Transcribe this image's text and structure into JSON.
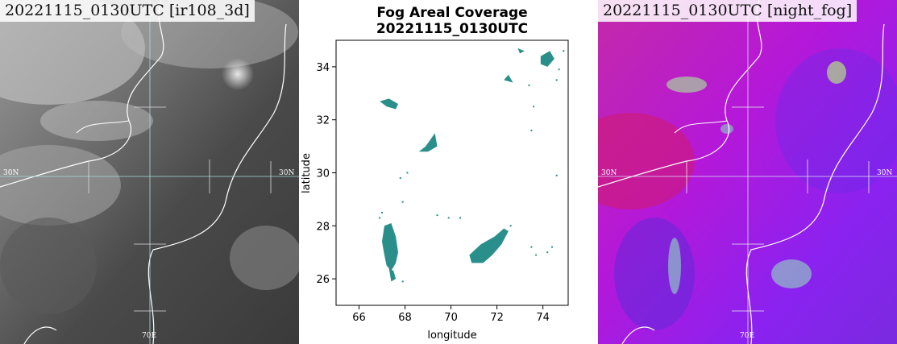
{
  "left_panel": {
    "title": "20221115_0130UTC [ir108_3d]",
    "lat_label_left": "30N",
    "lat_label_right": "30N",
    "lon_label": "70E"
  },
  "right_panel": {
    "title": "20221115_0130UTC [night_fog]",
    "lat_label_left": "30N",
    "lat_label_right": "30N",
    "lon_label": "70E"
  },
  "chart_data": {
    "type": "heatmap",
    "title": "Fog Areal Coverage",
    "subtitle": "20221115_0130UTC",
    "xlabel": "longitude",
    "ylabel": "latitude",
    "xlim": [
      65,
      75.1
    ],
    "ylim": [
      25,
      35
    ],
    "xticks": [
      66,
      68,
      70,
      72,
      74
    ],
    "yticks": [
      26,
      28,
      30,
      32,
      34
    ],
    "fog_color": "#2a8f8a",
    "fog_patches": [
      {
        "name": "patch-sw-large",
        "points": [
          [
            67.1,
            28.0
          ],
          [
            67.4,
            28.1
          ],
          [
            67.6,
            27.6
          ],
          [
            67.7,
            27.0
          ],
          [
            67.6,
            26.6
          ],
          [
            67.4,
            26.3
          ],
          [
            67.2,
            26.5
          ],
          [
            67.1,
            26.9
          ],
          [
            67.0,
            27.4
          ]
        ]
      },
      {
        "name": "patch-sw-tail",
        "points": [
          [
            67.3,
            26.4
          ],
          [
            67.5,
            26.3
          ],
          [
            67.6,
            26.0
          ],
          [
            67.4,
            25.9
          ]
        ]
      },
      {
        "name": "patch-se-large",
        "points": [
          [
            70.8,
            26.9
          ],
          [
            71.3,
            27.3
          ],
          [
            71.9,
            27.6
          ],
          [
            72.3,
            27.9
          ],
          [
            72.5,
            27.8
          ],
          [
            72.2,
            27.3
          ],
          [
            71.8,
            26.9
          ],
          [
            71.4,
            26.6
          ],
          [
            70.9,
            26.6
          ]
        ]
      },
      {
        "name": "patch-ne",
        "points": [
          [
            73.9,
            34.4
          ],
          [
            74.3,
            34.6
          ],
          [
            74.5,
            34.3
          ],
          [
            74.2,
            34.0
          ],
          [
            73.9,
            34.1
          ]
        ]
      },
      {
        "name": "patch-nw",
        "points": [
          [
            66.9,
            32.7
          ],
          [
            67.3,
            32.8
          ],
          [
            67.7,
            32.6
          ],
          [
            67.6,
            32.4
          ],
          [
            67.2,
            32.5
          ]
        ]
      },
      {
        "name": "patch-mid-north",
        "points": [
          [
            68.6,
            30.8
          ],
          [
            68.9,
            31.0
          ],
          [
            69.3,
            31.5
          ],
          [
            69.4,
            31.0
          ],
          [
            69.0,
            30.8
          ]
        ]
      },
      {
        "name": "patch-ne-top",
        "points": [
          [
            72.9,
            34.7
          ],
          [
            73.2,
            34.6
          ],
          [
            73.0,
            34.5
          ]
        ]
      },
      {
        "name": "patch-east-dots",
        "points": [
          [
            72.3,
            33.5
          ],
          [
            72.5,
            33.7
          ],
          [
            72.7,
            33.4
          ]
        ]
      }
    ],
    "fog_dots": [
      [
        74.9,
        34.6
      ],
      [
        74.7,
        33.9
      ],
      [
        74.6,
        33.5
      ],
      [
        73.4,
        33.3
      ],
      [
        73.6,
        32.5
      ],
      [
        73.5,
        31.6
      ],
      [
        74.6,
        29.9
      ],
      [
        67.8,
        29.8
      ],
      [
        68.1,
        30.0
      ],
      [
        67.0,
        28.5
      ],
      [
        66.9,
        28.3
      ],
      [
        67.9,
        28.9
      ],
      [
        69.4,
        28.4
      ],
      [
        69.9,
        28.3
      ],
      [
        70.4,
        28.3
      ],
      [
        72.6,
        28.0
      ],
      [
        73.5,
        27.2
      ],
      [
        74.2,
        27.0
      ],
      [
        73.7,
        26.9
      ],
      [
        74.4,
        27.2
      ],
      [
        67.9,
        25.9
      ]
    ]
  }
}
